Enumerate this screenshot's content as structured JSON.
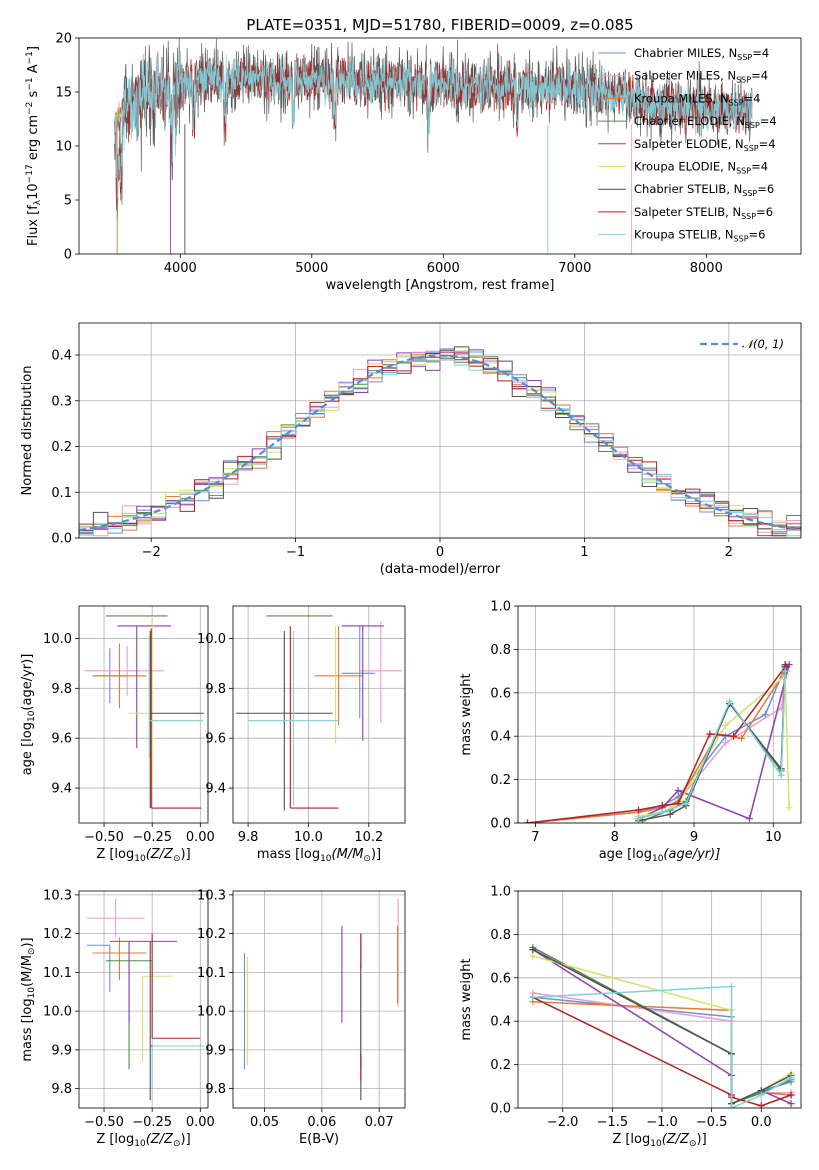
{
  "colors": [
    "#6b8fd8",
    "#f09ad0",
    "#e07b39",
    "#4f8b4f",
    "#8e3fb0",
    "#d4e26b",
    "#505050",
    "#b22222",
    "#7fd0d9"
  ],
  "series_names": [
    "Chabrier MILES, N",
    "Salpeter MILES, N",
    "Kroupa MILES, N",
    "Chabrier ELODIE, N",
    "Salpeter ELODIE, N",
    "Kroupa ELODIE, N",
    "Chabrier STELIB, N",
    "Salpeter STELIB, N",
    "Kroupa STELIB, N"
  ],
  "series_nssp": [
    "=4",
    "=4",
    "=4",
    "=4",
    "=4",
    "=4",
    "=6",
    "=6",
    "=6"
  ],
  "ssp_sub": "SSP",
  "chart_data": [
    {
      "id": "spectrum",
      "type": "line",
      "title": "PLATE=0351, MJD=51780, FIBERID=0009, z=0.085",
      "xlabel": "wavelength [Angstrom, rest frame]",
      "ylabel": "Flux [f",
      "ylabel_sub": "λ",
      "ylabel_rest": "10",
      "ylabel_exp": "−17",
      "ylabel_units": " erg cm",
      "ylabel_exp2": "−2",
      "ylabel_s": " s",
      "ylabel_exp3": "−1",
      "ylabel_A": " A",
      "ylabel_exp4": "−1",
      "ylabel_end": "]",
      "xlim": [
        3230,
        8720
      ],
      "ylim": [
        0,
        20
      ],
      "xticks": [
        4000,
        5000,
        6000,
        7000,
        8000
      ],
      "yticks": [
        0,
        5,
        10,
        15,
        20
      ],
      "x_range": [
        3500,
        8350
      ],
      "grid": false,
      "legend": "upper right"
    },
    {
      "id": "residuals",
      "type": "histogram",
      "xlabel": "(data-model)/error",
      "ylabel": "Normed distribution",
      "xlim": [
        -2.5,
        2.5
      ],
      "ylim": [
        0,
        0.47
      ],
      "xticks": [
        -2,
        -1,
        0,
        1,
        2
      ],
      "yticks": [
        0.0,
        0.1,
        0.2,
        0.3,
        0.4
      ],
      "bin_width": 0.1,
      "grid": true,
      "legend_label": "𝒩(0, 1)",
      "legend": "upper right"
    },
    {
      "id": "age-vs-Z",
      "type": "errorbar",
      "xlabel": "Z [log",
      "xlabel_sub": "10",
      "xlabel_rest": "(Z/Z",
      "xlabel_sub2": "⊙",
      "xlabel_end": ")]",
      "ylabel": "age  [log",
      "ylabel_sub": "10",
      "ylabel_rest": "(age/yr)]",
      "xlim": [
        -0.63,
        0.04
      ],
      "ylim": [
        9.26,
        10.13
      ],
      "xticks": [
        -0.5,
        -0.25,
        0.0
      ],
      "yticks": [
        9.4,
        9.6,
        9.8,
        10.0
      ],
      "points": [
        {
          "x": -0.47,
          "xerr": [
            0.09,
            0.09
          ],
          "y": 9.85,
          "yerr": [
            0.11,
            0.11
          ]
        },
        {
          "x": -0.38,
          "xerr": [
            0.22,
            0.19
          ],
          "y": 9.87,
          "yerr": [
            0.1,
            0.1
          ]
        },
        {
          "x": -0.42,
          "xerr": [
            0.13,
            0.14
          ],
          "y": 9.85,
          "yerr": [
            0.13,
            0.13
          ]
        },
        {
          "x": -0.33,
          "xerr": [
            0.16,
            0.16
          ],
          "y": 10.09,
          "yerr": [
            0.0,
            0.0
          ]
        },
        {
          "x": -0.33,
          "xerr": [
            0.1,
            0.18
          ],
          "y": 10.05,
          "yerr": [
            0.49,
            0.0
          ]
        },
        {
          "x": -0.25,
          "xerr": [
            0.12,
            0.0
          ],
          "y": 9.7,
          "yerr": [
            0.29,
            0.39
          ]
        },
        {
          "x": -0.26,
          "xerr": [
            0.0,
            0.28
          ],
          "y": 9.7,
          "yerr": [
            0.38,
            0.33
          ]
        },
        {
          "x": -0.255,
          "xerr": [
            0.0,
            0.26
          ],
          "y": 9.32,
          "yerr": [
            0.0,
            0.72
          ]
        },
        {
          "x": -0.265,
          "xerr": [
            0.0,
            0.28
          ],
          "y": 9.67,
          "yerr": [
            0.15,
            0.34
          ]
        }
      ],
      "grid": true
    },
    {
      "id": "age-vs-mass",
      "type": "errorbar",
      "xlabel": "mass [log",
      "xlabel_sub": "10",
      "xlabel_rest": "(M/M",
      "xlabel_sub2": "⊙",
      "xlabel_end": ")]",
      "xlim": [
        9.75,
        10.32
      ],
      "ylim": [
        9.26,
        10.13
      ],
      "xticks": [
        9.8,
        10.0,
        10.2
      ],
      "yticks": [
        9.4,
        9.6,
        9.8,
        10.0
      ],
      "points": [
        {
          "x": 10.17,
          "xerr": [
            0.06,
            0.05
          ],
          "y": 9.86,
          "yerr": [
            0.18,
            0.19
          ]
        },
        {
          "x": 10.24,
          "xerr": [
            0.07,
            0.07
          ],
          "y": 9.87,
          "yerr": [
            0.21,
            0.2
          ]
        },
        {
          "x": 10.1,
          "xerr": [
            0.08,
            0.08
          ],
          "y": 9.85,
          "yerr": [
            0.2,
            0.2
          ]
        },
        {
          "x": 9.92,
          "xerr": [
            0.06,
            0.16
          ],
          "y": 10.09,
          "yerr": [
            0.0,
            0.0
          ]
        },
        {
          "x": 10.18,
          "xerr": [
            0.07,
            0.07
          ],
          "y": 10.05,
          "yerr": [
            0.46,
            0.0
          ]
        },
        {
          "x": 10.09,
          "xerr": [
            0.0,
            0.0
          ],
          "y": 9.67,
          "yerr": [
            0.09,
            0.38
          ]
        },
        {
          "x": 9.92,
          "xerr": [
            0.16,
            0.16
          ],
          "y": 9.7,
          "yerr": [
            0.39,
            0.33
          ]
        },
        {
          "x": 9.94,
          "xerr": [
            0.0,
            0.16
          ],
          "y": 9.32,
          "yerr": [
            0.0,
            0.73
          ]
        },
        {
          "x": 9.95,
          "xerr": [
            0.15,
            0.15
          ],
          "y": 9.67,
          "yerr": [
            0.34,
            0.36
          ]
        }
      ],
      "grid": true
    },
    {
      "id": "massweight-vs-age",
      "type": "line",
      "xlabel": "age  [log",
      "xlabel_sub": "10",
      "xlabel_rest": "(age/yr)]",
      "ylabel": "mass weight",
      "xlim": [
        6.78,
        10.35
      ],
      "ylim": [
        0,
        1
      ],
      "xticks": [
        7,
        8,
        9,
        10
      ],
      "yticks": [
        0.0,
        0.2,
        0.4,
        0.6,
        0.8,
        1.0
      ],
      "series": [
        {
          "x": [
            6.9,
            8.3,
            8.6,
            8.8,
            9.4,
            9.9,
            10.15
          ],
          "y": [
            0.0,
            0.05,
            0.08,
            0.12,
            0.4,
            0.5,
            0.72
          ]
        },
        {
          "x": [
            6.9,
            8.3,
            8.6,
            8.8,
            9.4,
            10.1,
            10.17
          ],
          "y": [
            0.0,
            0.05,
            0.07,
            0.1,
            0.37,
            0.53,
            0.7
          ]
        },
        {
          "x": [
            6.9,
            8.3,
            8.6,
            8.8,
            9.3,
            9.6,
            10.15
          ],
          "y": [
            0.0,
            0.05,
            0.07,
            0.1,
            0.41,
            0.39,
            0.7
          ]
        },
        {
          "x": [
            8.35,
            8.7,
            8.9,
            9.45,
            10.1,
            10.15
          ],
          "y": [
            0.01,
            0.06,
            0.1,
            0.55,
            0.24,
            0.73
          ]
        },
        {
          "x": [
            8.3,
            8.6,
            8.8,
            9.7,
            10.2,
            10.17
          ],
          "y": [
            0.02,
            0.07,
            0.15,
            0.02,
            0.73,
            0.72
          ]
        },
        {
          "x": [
            8.3,
            8.6,
            8.8,
            9.4,
            10.15,
            10.2
          ],
          "y": [
            0.03,
            0.05,
            0.09,
            0.45,
            0.68,
            0.07
          ]
        },
        {
          "x": [
            8.3,
            8.7,
            8.9,
            9.45,
            10.1,
            10.15
          ],
          "y": [
            0.01,
            0.04,
            0.08,
            0.55,
            0.25,
            0.73
          ]
        },
        {
          "x": [
            6.9,
            8.3,
            8.6,
            8.8,
            9.2,
            9.5,
            10.15
          ],
          "y": [
            0.0,
            0.06,
            0.08,
            0.09,
            0.41,
            0.4,
            0.72
          ]
        },
        {
          "x": [
            8.3,
            8.6,
            8.9,
            9.45,
            10.1,
            10.15
          ],
          "y": [
            0.02,
            0.05,
            0.09,
            0.56,
            0.22,
            0.7
          ]
        }
      ],
      "grid": true
    },
    {
      "id": "mass-vs-Z",
      "type": "errorbar",
      "xlabel": "Z [log",
      "xlabel_sub": "10",
      "xlabel_rest": "(Z/Z",
      "xlabel_sub2": "⊙",
      "xlabel_end": ")]",
      "ylabel": "mass [log",
      "ylabel_sub": "10",
      "ylabel_rest": "(M/M",
      "ylabel_sub2": "⊙",
      "ylabel_end": ")]",
      "xlim": [
        -0.63,
        0.04
      ],
      "ylim": [
        9.75,
        10.31
      ],
      "xticks": [
        -0.5,
        -0.25,
        0.0
      ],
      "yticks": [
        9.8,
        9.9,
        10.0,
        10.1,
        10.2,
        10.3
      ],
      "points": [
        {
          "x": -0.47,
          "xerr": [
            0.12,
            0.0
          ],
          "y": 10.17,
          "yerr": [
            0.12,
            0.0
          ]
        },
        {
          "x": -0.44,
          "xerr": [
            0.15,
            0.15
          ],
          "y": 10.24,
          "yerr": [
            0.05,
            0.05
          ]
        },
        {
          "x": -0.42,
          "xerr": [
            0.14,
            0.14
          ],
          "y": 10.15,
          "yerr": [
            0.07,
            0.04
          ]
        },
        {
          "x": -0.37,
          "xerr": [
            0.12,
            0.12
          ],
          "y": 10.13,
          "yerr": [
            0.28,
            0.0
          ]
        },
        {
          "x": -0.37,
          "xerr": [
            0.1,
            0.25
          ],
          "y": 10.18,
          "yerr": [
            0.21,
            0.0
          ]
        },
        {
          "x": -0.3,
          "xerr": [
            0.0,
            0.15
          ],
          "y": 10.09,
          "yerr": [
            0.22,
            0.0
          ]
        },
        {
          "x": -0.26,
          "xerr": [
            0.0,
            0.27
          ],
          "y": 9.91,
          "yerr": [
            0.14,
            0.27
          ]
        },
        {
          "x": -0.25,
          "xerr": [
            0.0,
            0.25
          ],
          "y": 9.93,
          "yerr": [
            0.0,
            0.27
          ]
        },
        {
          "x": -0.25,
          "xerr": [
            0.0,
            0.27
          ],
          "y": 9.91,
          "yerr": [
            0.11,
            0.0
          ]
        }
      ],
      "grid": true
    },
    {
      "id": "mass-vs-EBV",
      "type": "errorbar",
      "xlabel": "E(B-V)",
      "xlim": [
        0.0445,
        0.0745
      ],
      "ylim": [
        9.75,
        10.31
      ],
      "xticks": [
        0.05,
        0.06,
        0.07
      ],
      "yticks": [
        9.8,
        9.9,
        10.0,
        10.1,
        10.2,
        10.3
      ],
      "points": [
        {
          "x": 0.0465,
          "y": 10.0,
          "yerr": [
            0.15,
            0.15
          ]
        },
        {
          "x": 0.0733,
          "y": 10.15,
          "yerr": [
            0.14,
            0.14
          ]
        },
        {
          "x": 0.0732,
          "y": 10.1,
          "yerr": [
            0.08,
            0.12
          ]
        },
        {
          "x": 0.0668,
          "y": 10.05,
          "yerr": [
            0.2,
            0.15
          ]
        },
        {
          "x": 0.0635,
          "y": 10.1,
          "yerr": [
            0.13,
            0.12
          ]
        },
        {
          "x": 0.047,
          "y": 10.0,
          "yerr": [
            0.14,
            0.14
          ]
        },
        {
          "x": 0.0668,
          "y": 9.95,
          "yerr": [
            0.18,
            0.17
          ]
        },
        {
          "x": 0.0668,
          "y": 10.05,
          "yerr": [
            0.23,
            0.15
          ]
        },
        {
          "x": 0.0669,
          "y": 10.0,
          "yerr": [
            0.11,
            0.11
          ]
        }
      ],
      "grid": true
    },
    {
      "id": "massweight-vs-Z",
      "type": "line",
      "xlabel": "Z [log",
      "xlabel_sub": "10",
      "xlabel_rest": "(Z/Z",
      "xlabel_sub2": "⊙",
      "xlabel_end": ")]",
      "ylabel": "mass weight",
      "xlim": [
        -2.45,
        0.4
      ],
      "ylim": [
        0,
        1
      ],
      "xticks": [
        -2.0,
        -1.5,
        -1.0,
        -0.5,
        0.0
      ],
      "yticks": [
        0.0,
        0.2,
        0.4,
        0.6,
        0.8,
        1.0
      ],
      "series": [
        {
          "x": [
            -2.3,
            -0.3,
            -0.3,
            0.0,
            0.3
          ],
          "y": [
            0.51,
            0.42,
            0.02,
            0.08,
            0.12
          ]
        },
        {
          "x": [
            -2.3,
            -0.3,
            -0.3,
            0.0,
            0.3
          ],
          "y": [
            0.53,
            0.4,
            0.02,
            0.07,
            0.07
          ]
        },
        {
          "x": [
            -2.3,
            -0.3,
            -0.3,
            0.0,
            0.3
          ],
          "y": [
            0.49,
            0.45,
            0.02,
            0.07,
            0.06
          ]
        },
        {
          "x": [
            -2.3,
            -0.3,
            -0.3,
            0.0,
            0.3
          ],
          "y": [
            0.74,
            0.25,
            0.02,
            0.07,
            0.13
          ]
        },
        {
          "x": [
            -2.3,
            -0.3,
            -0.3,
            0.0,
            0.3
          ],
          "y": [
            0.73,
            0.15,
            0.02,
            0.08,
            0.02
          ]
        },
        {
          "x": [
            -2.3,
            -0.3,
            -0.3,
            0.0,
            0.3
          ],
          "y": [
            0.7,
            0.45,
            0.02,
            0.08,
            0.16
          ]
        },
        {
          "x": [
            -2.3,
            -0.3,
            -0.3,
            0.0,
            0.3
          ],
          "y": [
            0.73,
            0.25,
            0.02,
            0.08,
            0.15
          ]
        },
        {
          "x": [
            -2.3,
            -0.3,
            -0.3,
            0.0,
            0.3
          ],
          "y": [
            0.51,
            0.06,
            0.05,
            0.01,
            0.06
          ]
        },
        {
          "x": [
            -2.3,
            -0.3,
            -0.3,
            0.0,
            0.3
          ],
          "y": [
            0.51,
            0.56,
            0.0,
            0.06,
            0.14
          ]
        }
      ],
      "grid": true
    }
  ]
}
